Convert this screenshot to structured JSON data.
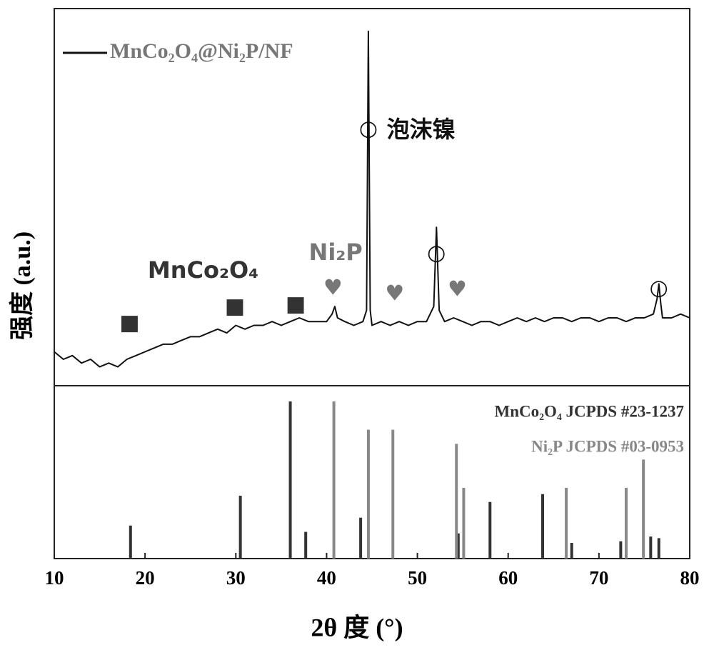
{
  "chart_data": [
    {
      "type": "line",
      "xlim": [
        10,
        80
      ],
      "ylim": [
        0,
        100
      ],
      "series": [
        {
          "name": "MnCo₂O₄@Ni₂P/NF",
          "color": "#111111",
          "x": [
            10,
            11,
            12,
            13,
            14,
            15,
            16,
            17,
            18,
            19,
            20,
            21,
            22,
            23,
            24,
            25,
            26,
            27,
            28,
            29,
            30,
            31,
            32,
            33,
            34,
            35,
            36,
            37,
            38,
            39,
            40,
            40.6,
            40.9,
            41.2,
            42,
            43,
            44,
            44.4,
            44.6,
            44.8,
            45,
            46,
            47,
            48,
            49,
            50,
            51,
            51.8,
            52.1,
            52.4,
            53,
            54,
            55,
            56,
            57,
            58,
            59,
            60,
            61,
            62,
            63,
            64,
            65,
            66,
            67,
            68,
            69,
            70,
            71,
            72,
            73,
            74,
            75,
            76,
            76.4,
            76.6,
            76.8,
            77,
            78,
            79,
            80
          ],
          "values": [
            9,
            7,
            8,
            6,
            7,
            5,
            6,
            5,
            7,
            8,
            9,
            10,
            11,
            11,
            12,
            13,
            13,
            14,
            15,
            14,
            16,
            15,
            16,
            16,
            17,
            16,
            17,
            18,
            17,
            17,
            17,
            19,
            21,
            18,
            17,
            16,
            17,
            20,
            94,
            20,
            16,
            17,
            16,
            17,
            16,
            17,
            17,
            21,
            42,
            20,
            17,
            18,
            17,
            16,
            17,
            17,
            16,
            17,
            18,
            17,
            18,
            17,
            18,
            18,
            17,
            18,
            18,
            17,
            18,
            18,
            17,
            18,
            18,
            19,
            23,
            27,
            22,
            18,
            18,
            19,
            18
          ]
        }
      ],
      "annotations": [
        {
          "text": "○",
          "x": 44.6,
          "y": 68,
          "color": "#111111"
        },
        {
          "text": "○",
          "x": 52.1,
          "y": 35,
          "color": "#111111"
        },
        {
          "text": "○",
          "x": 76.6,
          "y": 25.8,
          "color": "#111111"
        },
        {
          "text": "泡沫镍",
          "x": 50.4,
          "y": 67.6,
          "color": "#111111"
        },
        {
          "text": "■",
          "x": 18.3,
          "y": 16.5,
          "color": "#333333"
        },
        {
          "text": "■",
          "x": 29.9,
          "y": 20.8,
          "color": "#333333"
        },
        {
          "text": "■",
          "x": 36.6,
          "y": 21.4,
          "color": "#333333"
        },
        {
          "text": "♥",
          "x": 40.7,
          "y": 25.8,
          "color": "#777777"
        },
        {
          "text": "♥",
          "x": 47.5,
          "y": 24.2,
          "color": "#777777"
        },
        {
          "text": "♥",
          "x": 54.4,
          "y": 25.4,
          "color": "#777777"
        },
        {
          "text": "MnCo₂O₄",
          "x": 26.4,
          "y": 30.3,
          "color": "#333333"
        },
        {
          "text": "Ni₂P",
          "x": 41.0,
          "y": 35,
          "color": "#777777"
        }
      ]
    },
    {
      "type": "stem",
      "xlabel": "2θ 度 (°)",
      "ylabel": "强度 (a.u.)",
      "xlim": [
        10,
        80
      ],
      "ylim": [
        0,
        110
      ],
      "xticks": [
        10,
        20,
        30,
        40,
        50,
        60,
        70,
        80
      ],
      "series": [
        {
          "name": "MnCo₂O₄ JCPDS #23-1237",
          "color": "#333333",
          "x": [
            18.4,
            30.5,
            36.0,
            37.7,
            43.75,
            54.5,
            58.0,
            63.8,
            67.0,
            72.4,
            75.7,
            76.6
          ],
          "values": [
            21,
            40,
            100,
            17,
            26,
            16,
            36,
            41,
            10,
            11,
            14,
            13
          ]
        },
        {
          "name": "Ni₂P JCPDS #03-0953",
          "color": "#888888",
          "x": [
            40.8,
            44.6,
            47.3,
            54.3,
            55.1,
            66.4,
            73.0,
            74.9
          ],
          "values": [
            100,
            82,
            82,
            73,
            45,
            45,
            45,
            63
          ]
        }
      ]
    }
  ]
}
